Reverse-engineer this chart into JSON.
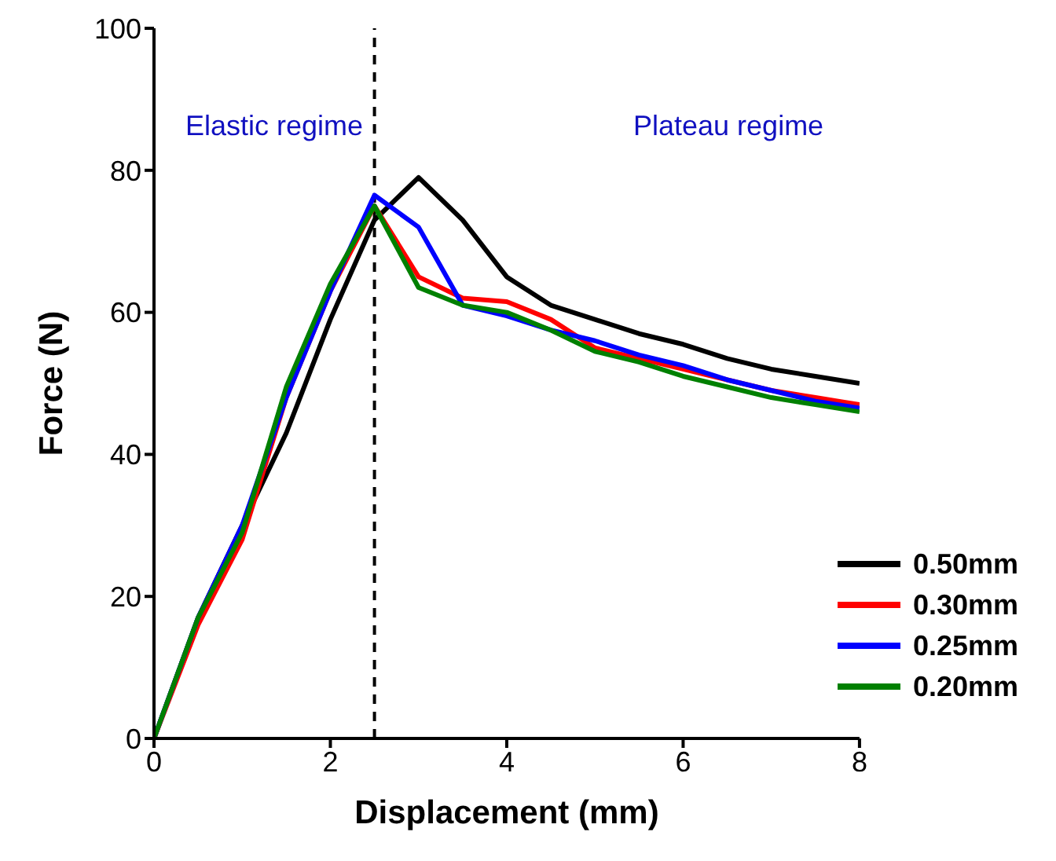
{
  "chart_data": {
    "type": "line",
    "xlabel": "Displacement (mm)",
    "ylabel": "Force (N)",
    "x": [
      0,
      0.5,
      1,
      1.5,
      2,
      2.5,
      3,
      3.5,
      4,
      4.5,
      5,
      5.5,
      6,
      6.5,
      7,
      7.5,
      8
    ],
    "series": [
      {
        "name": "0.50mm",
        "color": "#000000",
        "values": [
          0,
          17,
          30,
          43,
          59,
          73,
          79,
          73,
          65,
          61,
          59,
          57,
          55.5,
          53.5,
          52,
          51,
          50
        ]
      },
      {
        "name": "0.30mm",
        "color": "#ff0000",
        "values": [
          0,
          16,
          28,
          48,
          63,
          75,
          65,
          62,
          61.5,
          59,
          55,
          53.5,
          52,
          50.5,
          49,
          48,
          47
        ]
      },
      {
        "name": "0.25mm",
        "color": "#0000ff",
        "values": [
          0,
          17,
          30,
          48,
          63,
          76.5,
          72,
          61,
          59.5,
          57.5,
          56,
          54,
          52.5,
          50.5,
          49,
          47.5,
          46.5
        ]
      },
      {
        "name": "0.20mm",
        "color": "#008000",
        "values": [
          0,
          17,
          29,
          49.5,
          64,
          75,
          63.5,
          61,
          60,
          57.5,
          54.5,
          53,
          51,
          49.5,
          48,
          47,
          46
        ]
      }
    ],
    "xlim": [
      0,
      8
    ],
    "xticks": [
      0,
      2,
      4,
      6,
      8
    ],
    "ylim": [
      0,
      100
    ],
    "yticks": [
      0,
      20,
      40,
      60,
      80,
      100
    ],
    "grid": false,
    "legend": "bottom right",
    "marker": "none",
    "line_style": "solid",
    "ref_lines": [
      {
        "axis": "x",
        "value": 2.5,
        "color": "#000000",
        "line_style": "dashed"
      }
    ],
    "annotations": [
      "Elastic regime",
      "Plateau regime"
    ]
  }
}
